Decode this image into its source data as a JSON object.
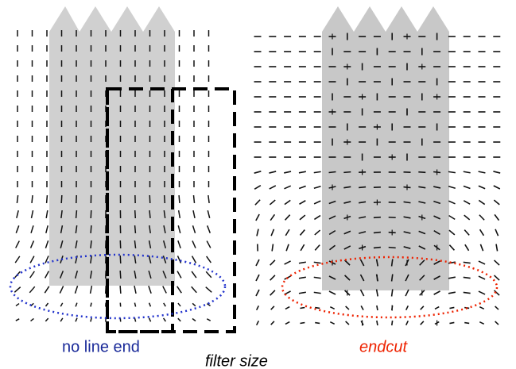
{
  "labels": {
    "left": "no line end",
    "right": "endcut",
    "center": "filter size"
  }
}
